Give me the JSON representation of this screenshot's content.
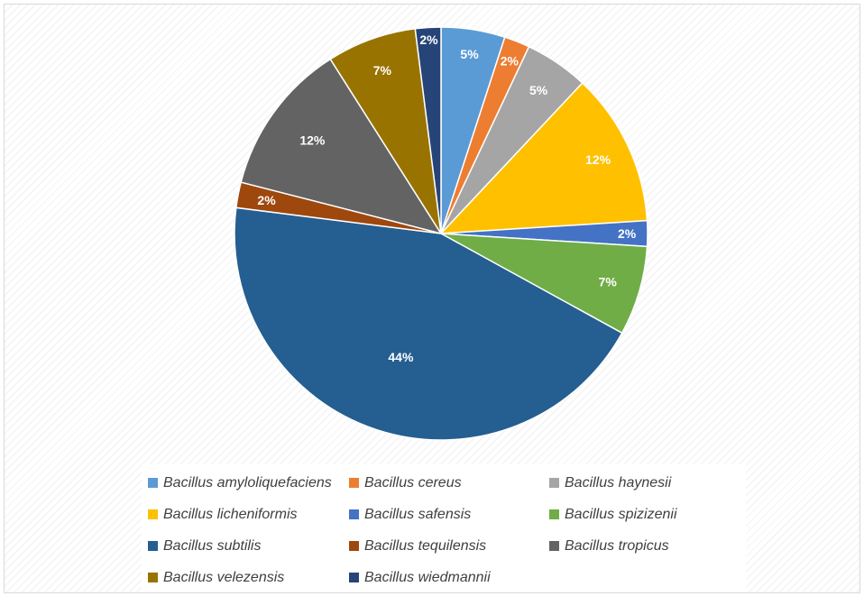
{
  "chart_data": {
    "type": "pie",
    "legend_position": "bottom",
    "slices": [
      {
        "name": "Bacillus amyloliquefaciens",
        "value": 5,
        "label": "5%",
        "color": "#5B9BD5"
      },
      {
        "name": "Bacillus cereus",
        "value": 2,
        "label": "2%",
        "color": "#ED7D31"
      },
      {
        "name": "Bacillus haynesii",
        "value": 5,
        "label": "5%",
        "color": "#A5A5A5"
      },
      {
        "name": "Bacillus licheniformis",
        "value": 12,
        "label": "12%",
        "color": "#FFC000"
      },
      {
        "name": "Bacillus safensis",
        "value": 2,
        "label": "2%",
        "color": "#4472C4"
      },
      {
        "name": "Bacillus spizizenii",
        "value": 7,
        "label": "7%",
        "color": "#70AD47"
      },
      {
        "name": "Bacillus subtilis",
        "value": 44,
        "label": "44%",
        "color": "#255E91"
      },
      {
        "name": "Bacillus tequilensis",
        "value": 2,
        "label": "2%",
        "color": "#9E480E"
      },
      {
        "name": "Bacillus tropicus",
        "value": 12,
        "label": "12%",
        "color": "#636363"
      },
      {
        "name": "Bacillus velezensis",
        "value": 7,
        "label": "7%",
        "color": "#997300"
      },
      {
        "name": "Bacillus wiedmannii",
        "value": 2,
        "label": "2%",
        "color": "#264478"
      }
    ]
  }
}
